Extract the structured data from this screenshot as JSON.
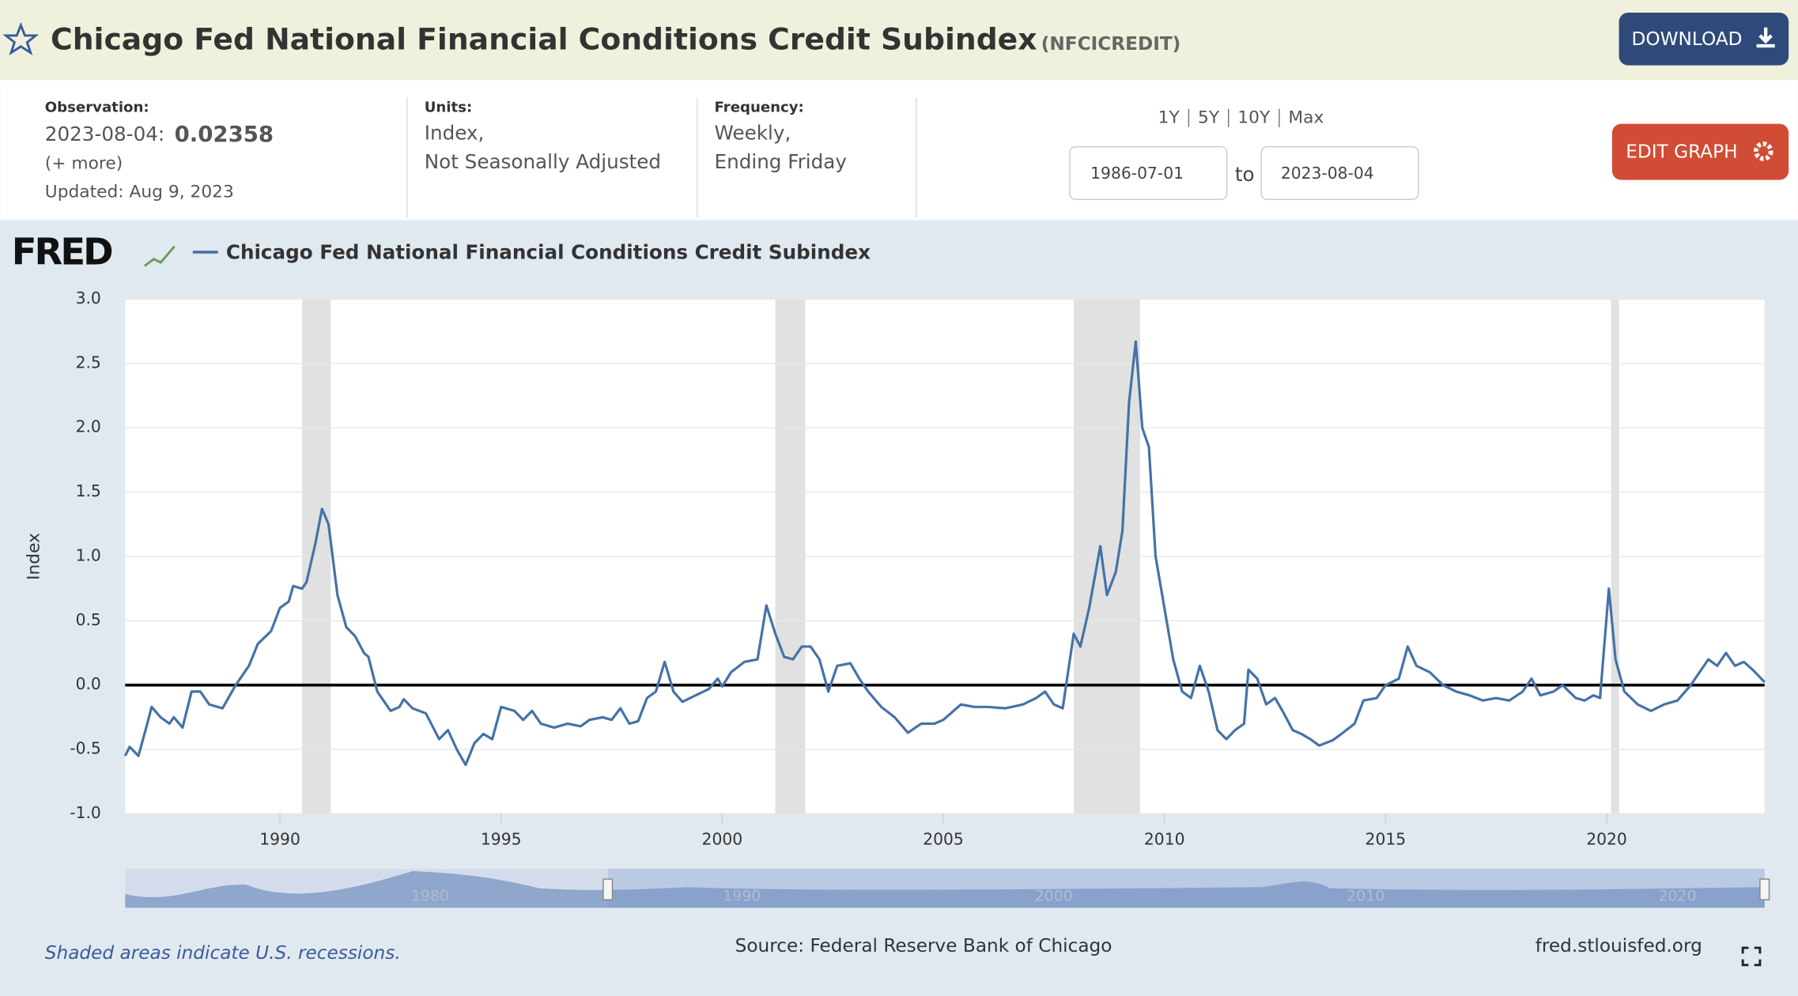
{
  "header": {
    "title": "Chicago Fed National Financial Conditions Credit Subindex",
    "series_id": "(NFCICREDIT)",
    "download": "DOWNLOAD",
    "edit_graph": "EDIT GRAPH"
  },
  "info": {
    "observation_label": "Observation:",
    "observation_date": "2023-08-04:",
    "observation_value": "0.02358",
    "more": "(+ more)",
    "updated": "Updated: Aug 9, 2023",
    "units_label": "Units:",
    "units_1": "Index,",
    "units_2": "Not Seasonally Adjusted",
    "frequency_label": "Frequency:",
    "frequency_1": "Weekly,",
    "frequency_2": "Ending Friday",
    "ranges": [
      "1Y",
      "5Y",
      "10Y",
      "Max"
    ],
    "start_date": "1986-07-01",
    "to": "to",
    "end_date": "2023-08-04"
  },
  "logo": "FRED",
  "navigator_labels": [
    "1980",
    "1990",
    "2000",
    "2010",
    "2020"
  ],
  "footer": {
    "note": "Shaded areas indicate U.S. recessions.",
    "source": "Source: Federal Reserve Bank of Chicago",
    "site": "fred.stlouisfed.org"
  },
  "chart_data": {
    "type": "line",
    "y_label": "Index",
    "xlim": [
      1986.5,
      2023.57
    ],
    "xticks": [
      1990,
      1995,
      2000,
      2005,
      2010,
      2015,
      2020
    ],
    "ylim": [
      -1,
      3
    ],
    "yticks": [
      {
        "value": 3,
        "label": "3.0"
      },
      2.5,
      {
        "value": 2,
        "label": "2.0"
      },
      1.5,
      {
        "value": 1,
        "label": "1.0"
      },
      0.5,
      {
        "value": 0,
        "label": "0.0"
      },
      -0.5,
      {
        "value": -1,
        "label": "-1.0"
      }
    ],
    "grid": true,
    "recessions": [
      [
        1990.5,
        1991.15
      ],
      [
        2001.2,
        2001.88
      ],
      [
        2007.95,
        2009.45
      ],
      [
        2020.1,
        2020.28
      ]
    ],
    "x": [
      1986.5,
      1986.6,
      1986.8,
      1987.0,
      1987.1,
      1987.3,
      1987.5,
      1987.6,
      1987.8,
      1988.0,
      1988.2,
      1988.4,
      1988.7,
      1989.0,
      1989.3,
      1989.5,
      1989.8,
      1990.0,
      1990.2,
      1990.3,
      1990.5,
      1990.6,
      1990.8,
      1990.95,
      1991.1,
      1991.3,
      1991.5,
      1991.7,
      1991.9,
      1992.0,
      1992.2,
      1992.5,
      1992.7,
      1992.8,
      1993.0,
      1993.3,
      1993.6,
      1993.8,
      1994.0,
      1994.2,
      1994.4,
      1994.6,
      1994.8,
      1995.0,
      1995.3,
      1995.5,
      1995.7,
      1995.9,
      1996.2,
      1996.5,
      1996.8,
      1997.0,
      1997.3,
      1997.5,
      1997.7,
      1997.9,
      1998.1,
      1998.3,
      1998.5,
      1998.7,
      1998.9,
      1999.1,
      1999.4,
      1999.7,
      1999.9,
      2000.0,
      2000.2,
      2000.5,
      2000.8,
      2001.0,
      2001.2,
      2001.4,
      2001.6,
      2001.8,
      2002.0,
      2002.2,
      2002.4,
      2002.6,
      2002.9,
      2003.1,
      2003.3,
      2003.6,
      2003.9,
      2004.2,
      2004.5,
      2004.8,
      2005.0,
      2005.4,
      2005.7,
      2006.0,
      2006.4,
      2006.8,
      2007.1,
      2007.3,
      2007.5,
      2007.7,
      2007.95,
      2008.1,
      2008.3,
      2008.55,
      2008.7,
      2008.9,
      2009.05,
      2009.2,
      2009.35,
      2009.5,
      2009.65,
      2009.8,
      2010.0,
      2010.2,
      2010.4,
      2010.6,
      2010.8,
      2011.0,
      2011.2,
      2011.4,
      2011.6,
      2011.8,
      2011.9,
      2012.1,
      2012.3,
      2012.5,
      2012.7,
      2012.9,
      2013.1,
      2013.3,
      2013.5,
      2013.8,
      2014.0,
      2014.3,
      2014.5,
      2014.8,
      2015.0,
      2015.3,
      2015.5,
      2015.7,
      2016.0,
      2016.3,
      2016.6,
      2016.9,
      2017.2,
      2017.5,
      2017.8,
      2018.1,
      2018.3,
      2018.5,
      2018.8,
      2019.0,
      2019.3,
      2019.5,
      2019.7,
      2019.85,
      2020.05,
      2020.2,
      2020.4,
      2020.7,
      2021.0,
      2021.3,
      2021.6,
      2021.9,
      2022.1,
      2022.3,
      2022.5,
      2022.7,
      2022.9,
      2023.1,
      2023.3,
      2023.57
    ],
    "series": [
      {
        "name": "Chicago Fed National Financial Conditions Credit Subindex",
        "color": "#4572a7",
        "values": [
          -0.55,
          -0.48,
          -0.55,
          -0.3,
          -0.17,
          -0.25,
          -0.3,
          -0.25,
          -0.33,
          -0.05,
          -0.05,
          -0.15,
          -0.18,
          0.0,
          0.15,
          0.32,
          0.42,
          0.6,
          0.65,
          0.77,
          0.75,
          0.8,
          1.1,
          1.37,
          1.25,
          0.7,
          0.45,
          0.38,
          0.25,
          0.22,
          -0.05,
          -0.2,
          -0.17,
          -0.11,
          -0.18,
          -0.22,
          -0.42,
          -0.35,
          -0.5,
          -0.62,
          -0.45,
          -0.38,
          -0.42,
          -0.17,
          -0.2,
          -0.27,
          -0.2,
          -0.3,
          -0.33,
          -0.3,
          -0.32,
          -0.27,
          -0.25,
          -0.27,
          -0.18,
          -0.3,
          -0.28,
          -0.1,
          -0.05,
          0.18,
          -0.05,
          -0.13,
          -0.08,
          -0.03,
          0.05,
          -0.01,
          0.1,
          0.18,
          0.2,
          0.62,
          0.4,
          0.22,
          0.2,
          0.3,
          0.3,
          0.2,
          -0.05,
          0.15,
          0.17,
          0.05,
          -0.05,
          -0.17,
          -0.25,
          -0.37,
          -0.3,
          -0.3,
          -0.27,
          -0.15,
          -0.17,
          -0.17,
          -0.18,
          -0.15,
          -0.1,
          -0.05,
          -0.15,
          -0.18,
          0.4,
          0.3,
          0.6,
          1.08,
          0.7,
          0.88,
          1.2,
          2.2,
          2.67,
          2.0,
          1.85,
          1.0,
          0.6,
          0.2,
          -0.05,
          -0.1,
          0.15,
          -0.05,
          -0.35,
          -0.42,
          -0.35,
          -0.3,
          0.12,
          0.05,
          -0.15,
          -0.1,
          -0.22,
          -0.35,
          -0.38,
          -0.42,
          -0.47,
          -0.43,
          -0.38,
          -0.3,
          -0.12,
          -0.1,
          0.0,
          0.05,
          0.3,
          0.15,
          0.1,
          0.0,
          -0.05,
          -0.08,
          -0.12,
          -0.1,
          -0.12,
          -0.05,
          0.05,
          -0.08,
          -0.05,
          0.0,
          -0.1,
          -0.12,
          -0.08,
          -0.1,
          0.75,
          0.2,
          -0.05,
          -0.15,
          -0.2,
          -0.15,
          -0.12,
          0.0,
          0.1,
          0.2,
          0.15,
          0.25,
          0.15,
          0.18,
          0.12,
          0.02358
        ]
      }
    ]
  }
}
